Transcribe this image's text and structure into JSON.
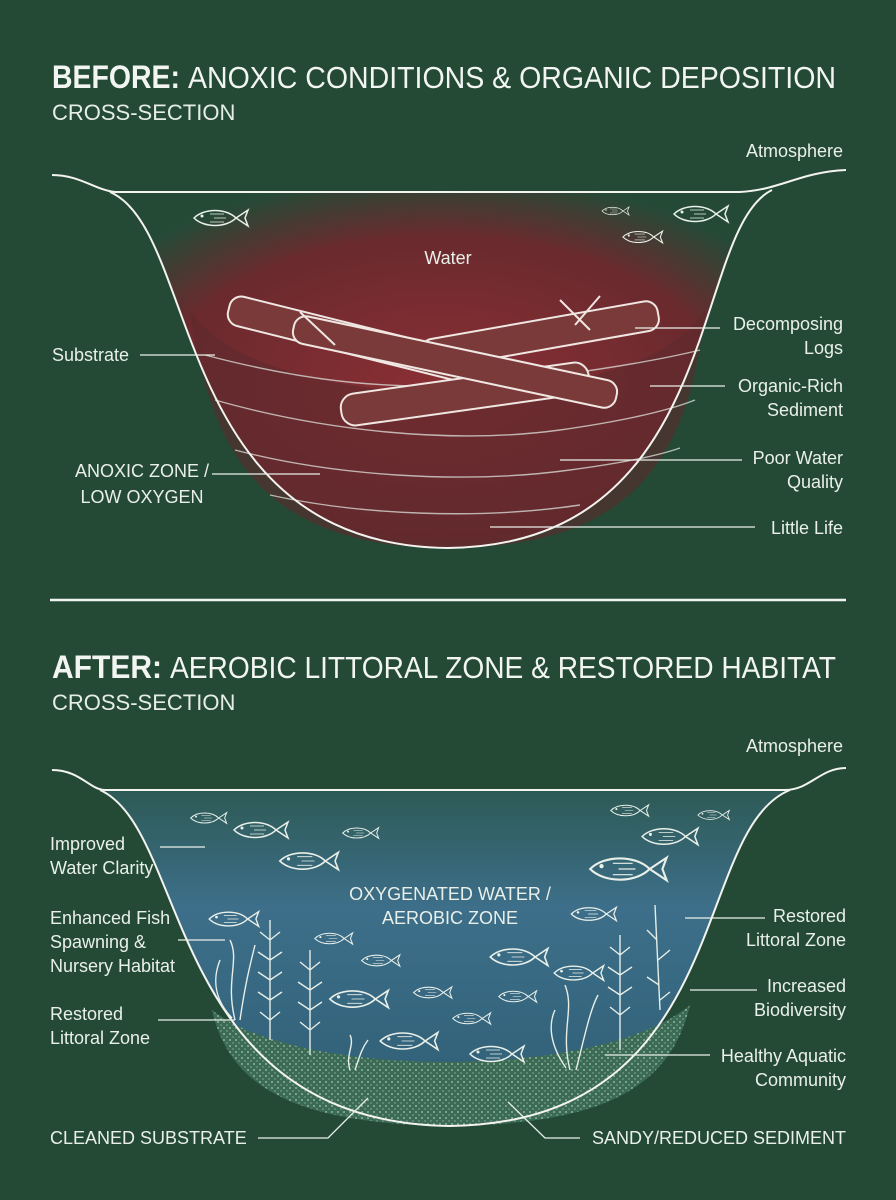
{
  "before": {
    "title_prefix": "BEFORE:",
    "title": "ANOXIC CONDITIONS & ORGANIC DEPOSITION",
    "subtitle": "CROSS-SECTION",
    "labels": {
      "atmosphere": "Atmosphere",
      "water": "Water",
      "substrate": "Substrate",
      "decomposing_logs": [
        "Decomposing",
        "Logs"
      ],
      "organic_rich_sediment": [
        "Organic-Rich",
        "Sediment"
      ],
      "anoxic_zone": [
        "ANOXIC ZONE /",
        "LOW OXYGEN"
      ],
      "poor_water_quality": [
        "Poor Water",
        "Quality"
      ],
      "little_life": "Little Life"
    }
  },
  "after": {
    "title_prefix": "AFTER:",
    "title": "AEROBIC LITTORAL ZONE & RESTORED HABITAT",
    "subtitle": "CROSS-SECTION",
    "labels": {
      "atmosphere": "Atmosphere",
      "improved_water_clarity": [
        "Improved",
        "Water Clarity"
      ],
      "oxygenated_water": [
        "OXYGENATED WATER /",
        "AEROBIC ZONE"
      ],
      "fish_spawning": [
        "Enhanced Fish",
        "Spawning &",
        "Nursery Habitat"
      ],
      "restored_littoral_left": [
        "Restored",
        "Littoral Zone"
      ],
      "restored_littoral_right": [
        "Restored",
        "Littoral Zone"
      ],
      "increased_biodiversity": [
        "Increased",
        "Biodiversity"
      ],
      "healthy_aquatic_community": [
        "Healthy Aquatic",
        "Community"
      ],
      "cleaned_substrate": "CLEANED SUBSTRATE",
      "sandy_sediment": "SANDY/REDUCED SEDIMENT"
    }
  }
}
